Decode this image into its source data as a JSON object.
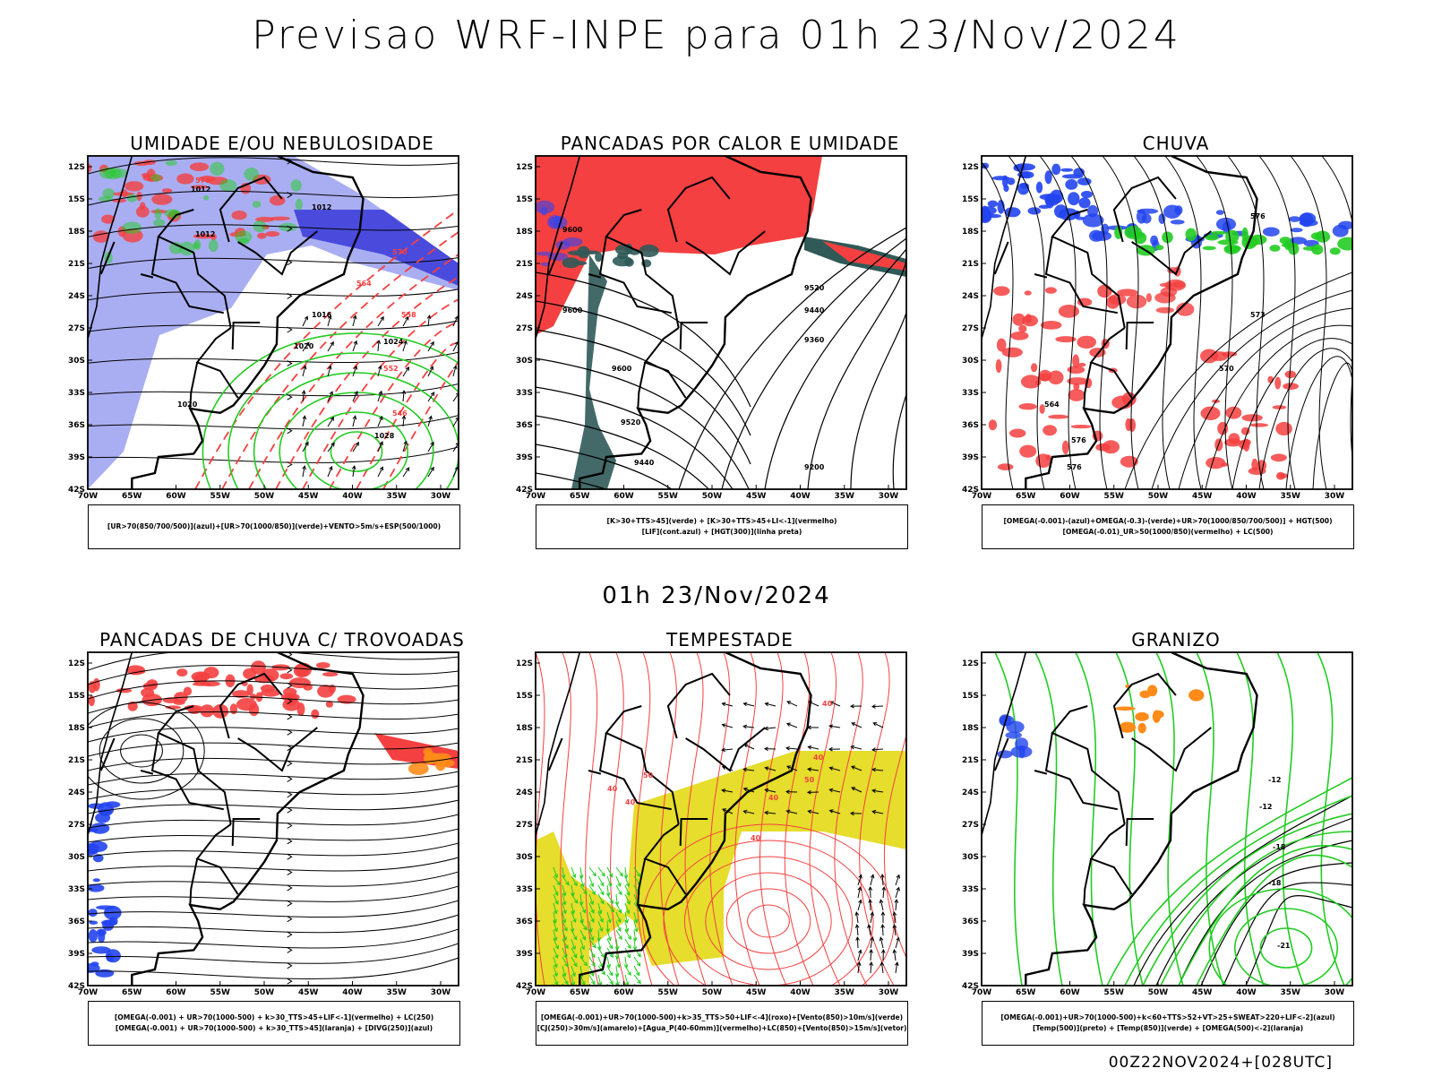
{
  "header": {
    "title": "Previsao WRF-INPE  para 01h 23/Nov/2024"
  },
  "middle_title": "01h 23/Nov/2024",
  "footer": "00Z22NOV2024+[028UTC]",
  "axes": {
    "lat_labels": [
      "12S",
      "15S",
      "18S",
      "21S",
      "24S",
      "27S",
      "30S",
      "33S",
      "36S",
      "39S",
      "42S"
    ],
    "lon_labels": [
      "70W",
      "65W",
      "60W",
      "55W",
      "50W",
      "45W",
      "40W",
      "35W",
      "30W"
    ]
  },
  "colors": {
    "red": "#f44040",
    "green": "#22cc22",
    "blue": "#2244ee",
    "lavender": "#9aa0f0",
    "yellow": "#e6dd2c",
    "orange": "#ff8c1a",
    "darkteal": "#2f5a58"
  },
  "panels": [
    {
      "id": "umidade",
      "title": "UMIDADE E/OU NEBULOSIDADE",
      "legend": [
        "[UR>70(850/700/500)](azul)+[UR>70(1000/850)](verde)+VENTO>5m/s+ESP(500/1000)"
      ],
      "contour_labels": [
        "1012",
        "1012",
        "1012",
        "1016",
        "1020",
        "1024",
        "1028",
        "1020",
        "576",
        "570",
        "564",
        "558",
        "552",
        "546"
      ]
    },
    {
      "id": "pancadas-calor",
      "title": "PANCADAS POR CALOR E UMIDADE",
      "legend": [
        "[K>30+TTS>45](verde) + [K>30+TTS>45+LI<-1](vermelho)",
        "[LIF](cont.azul) + [HGT(300)](linha preta)"
      ],
      "contour_labels": [
        "9600",
        "9600",
        "9520",
        "9440",
        "9360",
        "9600",
        "9520",
        "9440",
        "9200"
      ]
    },
    {
      "id": "chuva",
      "title": "CHUVA",
      "legend": [
        "[OMEGA(-0.001)-(azul)+OMEGA(-0.3)-(verde)+UR>70(1000/850/700/500)] + HGT(500)",
        "[OMEGA(-0.01)_UR>50(1000/850)(vermelho) + LC(500)"
      ],
      "contour_labels": [
        "576",
        "573",
        "570",
        "564",
        "576",
        "576"
      ]
    },
    {
      "id": "trovoadas",
      "title": "PANCADAS DE CHUVA C/ TROVOADAS",
      "legend": [
        "[OMEGA(-0.001) + UR>70(1000-500) + k>30_TTS>45+LIF<-1](vermelho) + LC(250)",
        "[OMEGA(-0.001) + UR>70(1000-500) + k>30_TTS>45](laranja) + [DIVG(250)](azul)"
      ],
      "contour_labels": []
    },
    {
      "id": "tempestade",
      "title": "TEMPESTADE",
      "legend": [
        "[OMEGA(-0.001)+UR>70(1000-500)+k>35_TTS>50+LIF<-4](roxo)+[Vento(850)>10m/s](verde)",
        "[CJ(250)>30m/s](amarelo)+[Agua_P(40-60mm)](vermelho)+LC(850)+[Vento(850)>15m/s](vetor)"
      ],
      "contour_labels": [
        "40",
        "50",
        "40",
        "40",
        "40",
        "50",
        "40",
        "40"
      ]
    },
    {
      "id": "granizo",
      "title": "GRANIZO",
      "legend": [
        "[OMEGA(-0.001)+UR>70(1000-500)+k<60+TTS>52+VT>25+SWEAT>220+LIF<-2](azul)",
        "[Temp(500)](preto) + [Temp(850)](verde) + [OMEGA(500)<-2](laranja)"
      ],
      "contour_labels": [
        "-12",
        "-12",
        "-18",
        "-18",
        "-21"
      ]
    }
  ]
}
